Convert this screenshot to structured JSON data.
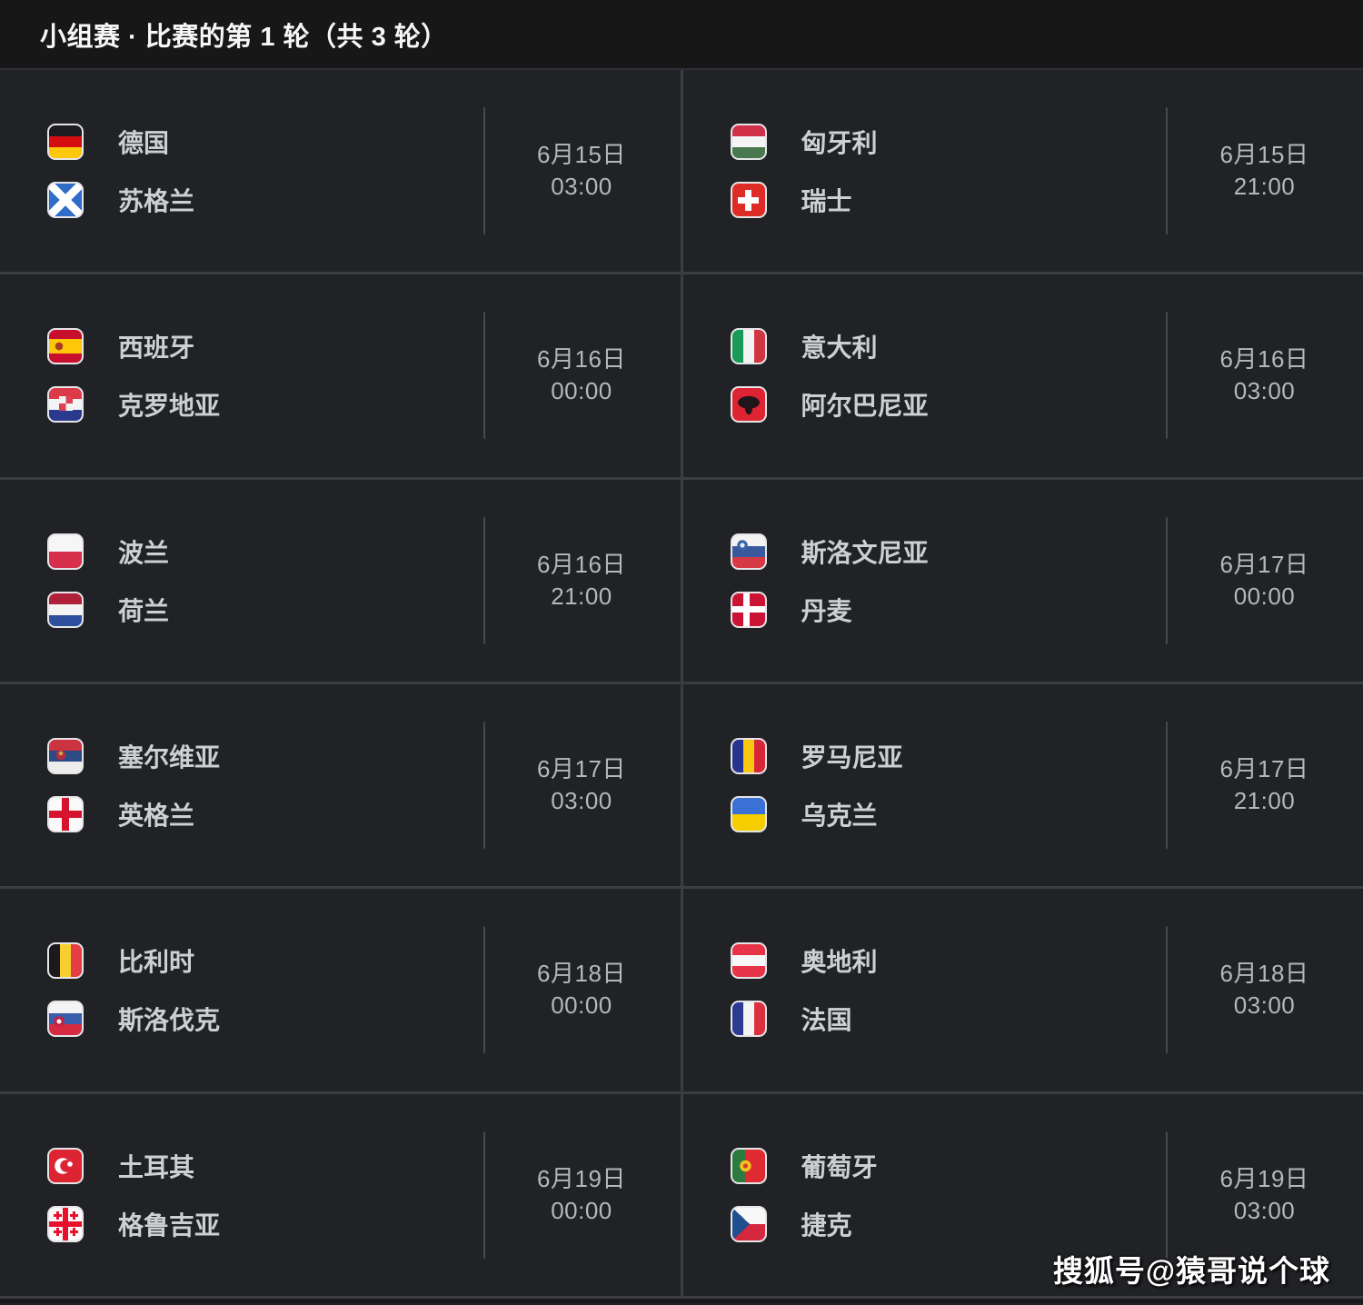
{
  "header": {
    "title": "小组赛 · 比赛的第 1 轮（共 3 轮）"
  },
  "watermark": {
    "text": "搜狐号@猿哥说个球"
  },
  "colors": {
    "page_bg": "#212226",
    "header_bg": "#171717",
    "separator": "#3a3d41",
    "team_text": "#cdcfd2",
    "date_text": "#b5b7ba"
  },
  "matches": [
    {
      "date": "6月15日",
      "time": "03:00",
      "teams": [
        {
          "name": "德国",
          "flag_class": "flag f-de"
        },
        {
          "name": "苏格兰",
          "flag_class": "flag f-sct"
        }
      ]
    },
    {
      "date": "6月15日",
      "time": "21:00",
      "teams": [
        {
          "name": "匈牙利",
          "flag_class": "flag f-hu"
        },
        {
          "name": "瑞士",
          "flag_class": "flag f-ch"
        }
      ]
    },
    {
      "date": "6月16日",
      "time": "00:00",
      "teams": [
        {
          "name": "西班牙",
          "flag_class": "flag f-es"
        },
        {
          "name": "克罗地亚",
          "flag_class": "flag f-hr"
        }
      ]
    },
    {
      "date": "6月16日",
      "time": "03:00",
      "teams": [
        {
          "name": "意大利",
          "flag_class": "flag f-it"
        },
        {
          "name": "阿尔巴尼亚",
          "flag_class": "flag f-al"
        }
      ]
    },
    {
      "date": "6月16日",
      "time": "21:00",
      "teams": [
        {
          "name": "波兰",
          "flag_class": "flag f-pl"
        },
        {
          "name": "荷兰",
          "flag_class": "flag f-nl"
        }
      ]
    },
    {
      "date": "6月17日",
      "time": "00:00",
      "teams": [
        {
          "name": "斯洛文尼亚",
          "flag_class": "flag f-si"
        },
        {
          "name": "丹麦",
          "flag_class": "flag f-dk"
        }
      ]
    },
    {
      "date": "6月17日",
      "time": "03:00",
      "teams": [
        {
          "name": "塞尔维亚",
          "flag_class": "flag f-rs"
        },
        {
          "name": "英格兰",
          "flag_class": "flag f-eng"
        }
      ]
    },
    {
      "date": "6月17日",
      "time": "21:00",
      "teams": [
        {
          "name": "罗马尼亚",
          "flag_class": "flag f-ro"
        },
        {
          "name": "乌克兰",
          "flag_class": "flag f-ua"
        }
      ]
    },
    {
      "date": "6月18日",
      "time": "00:00",
      "teams": [
        {
          "name": "比利时",
          "flag_class": "flag f-be"
        },
        {
          "name": "斯洛伐克",
          "flag_class": "flag f-sk"
        }
      ]
    },
    {
      "date": "6月18日",
      "time": "03:00",
      "teams": [
        {
          "name": "奥地利",
          "flag_class": "flag f-at"
        },
        {
          "name": "法国",
          "flag_class": "flag f-fr"
        }
      ]
    },
    {
      "date": "6月19日",
      "time": "00:00",
      "teams": [
        {
          "name": "土耳其",
          "flag_class": "flag f-tr"
        },
        {
          "name": "格鲁吉亚",
          "flag_class": "flag f-ge"
        }
      ]
    },
    {
      "date": "6月19日",
      "time": "03:00",
      "teams": [
        {
          "name": "葡萄牙",
          "flag_class": "flag f-pt"
        },
        {
          "name": "捷克",
          "flag_class": "flag f-cz"
        }
      ]
    }
  ]
}
